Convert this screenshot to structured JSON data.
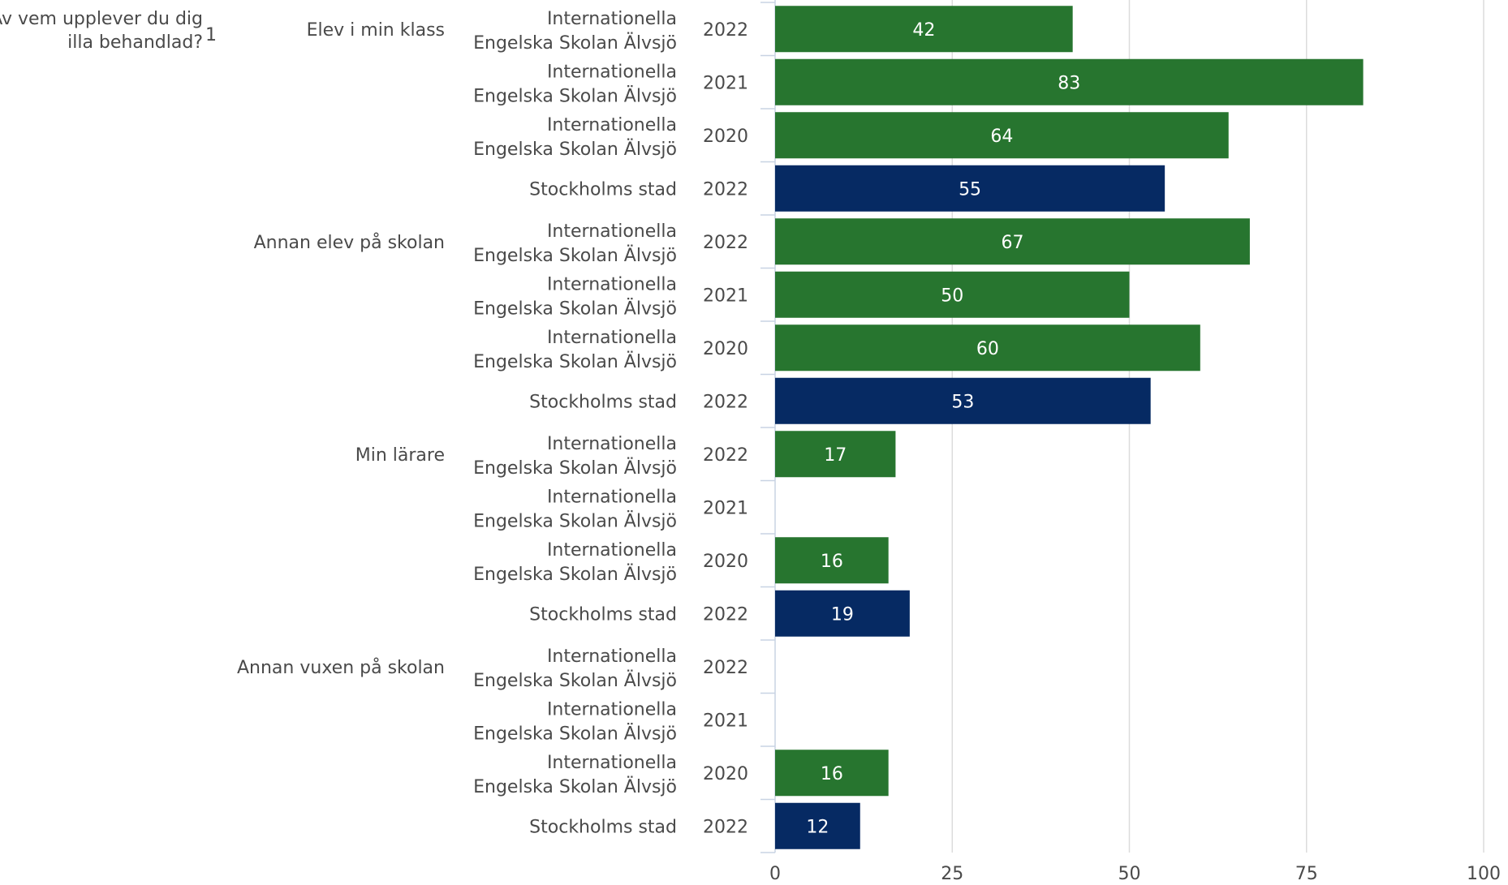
{
  "chart_data": {
    "type": "bar",
    "orientation": "horizontal",
    "question": [
      "Av vem upplever du dig",
      "illa behandlad?"
    ],
    "footnote_marker": "1",
    "xlim": [
      0,
      100
    ],
    "xticks": [
      "0",
      "25",
      "50",
      "75",
      "100"
    ],
    "grid": true,
    "colors": {
      "school": "#27752f",
      "city": "#062a63"
    },
    "groups": [
      {
        "category": "Elev i min klass",
        "rows": [
          {
            "entity": [
              "Internationella",
              "Engelska Skolan Älvsjö"
            ],
            "year": "2022",
            "value": 42,
            "series": "school"
          },
          {
            "entity": [
              "Internationella",
              "Engelska Skolan Älvsjö"
            ],
            "year": "2021",
            "value": 83,
            "series": "school"
          },
          {
            "entity": [
              "Internationella",
              "Engelska Skolan Älvsjö"
            ],
            "year": "2020",
            "value": 64,
            "series": "school"
          },
          {
            "entity": [
              "Stockholms stad"
            ],
            "year": "2022",
            "value": 55,
            "series": "city"
          }
        ]
      },
      {
        "category": "Annan elev på skolan",
        "rows": [
          {
            "entity": [
              "Internationella",
              "Engelska Skolan Älvsjö"
            ],
            "year": "2022",
            "value": 67,
            "series": "school"
          },
          {
            "entity": [
              "Internationella",
              "Engelska Skolan Älvsjö"
            ],
            "year": "2021",
            "value": 50,
            "series": "school"
          },
          {
            "entity": [
              "Internationella",
              "Engelska Skolan Älvsjö"
            ],
            "year": "2020",
            "value": 60,
            "series": "school"
          },
          {
            "entity": [
              "Stockholms stad"
            ],
            "year": "2022",
            "value": 53,
            "series": "city"
          }
        ]
      },
      {
        "category": "Min lärare",
        "rows": [
          {
            "entity": [
              "Internationella",
              "Engelska Skolan Älvsjö"
            ],
            "year": "2022",
            "value": 17,
            "series": "school"
          },
          {
            "entity": [
              "Internationella",
              "Engelska Skolan Älvsjö"
            ],
            "year": "2021",
            "value": null,
            "series": "school"
          },
          {
            "entity": [
              "Internationella",
              "Engelska Skolan Älvsjö"
            ],
            "year": "2020",
            "value": 16,
            "series": "school"
          },
          {
            "entity": [
              "Stockholms stad"
            ],
            "year": "2022",
            "value": 19,
            "series": "city"
          }
        ]
      },
      {
        "category": "Annan vuxen på skolan",
        "rows": [
          {
            "entity": [
              "Internationella",
              "Engelska Skolan Älvsjö"
            ],
            "year": "2022",
            "value": null,
            "series": "school"
          },
          {
            "entity": [
              "Internationella",
              "Engelska Skolan Älvsjö"
            ],
            "year": "2021",
            "value": null,
            "series": "school"
          },
          {
            "entity": [
              "Internationella",
              "Engelska Skolan Älvsjö"
            ],
            "year": "2020",
            "value": 16,
            "series": "school"
          },
          {
            "entity": [
              "Stockholms stad"
            ],
            "year": "2022",
            "value": 12,
            "series": "city"
          }
        ]
      }
    ]
  }
}
